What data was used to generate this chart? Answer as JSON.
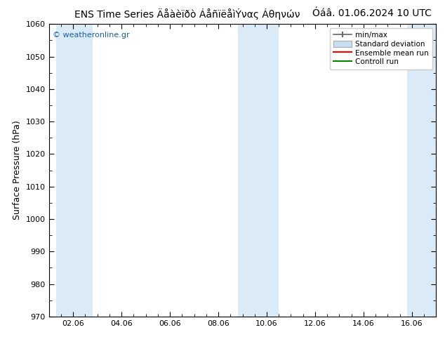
{
  "title_left": "ENS Time Series Äåàèïðò ÁåñïëåìÝνας Áθηνών",
  "title_right": "Óáâ. 01.06.2024 10 UTC",
  "ylabel": "Surface Pressure (hPa)",
  "ymin": 970,
  "ymax": 1060,
  "ytick_step": 10,
  "xlim": [
    0,
    16
  ],
  "xtick_positions": [
    1,
    3,
    5,
    7,
    9,
    11,
    13,
    15
  ],
  "xtick_labels": [
    "02.06",
    "04.06",
    "06.06",
    "08.06",
    "10.06",
    "12.06",
    "14.06",
    "16.06"
  ],
  "shade_bands": [
    {
      "xmin": 0.3,
      "xmax": 1.8
    },
    {
      "xmin": 7.8,
      "xmax": 9.5
    },
    {
      "xmin": 14.8,
      "xmax": 16.0
    }
  ],
  "shade_color": "#daeaf7",
  "watermark": "© weatheronline.gr",
  "watermark_color": "#1a5fa8",
  "legend_minmax_color": "#666666",
  "legend_std_facecolor": "#c8dff0",
  "legend_std_edgecolor": "#aaaaaa",
  "legend_ens_color": "#ff0000",
  "legend_ctrl_color": "#008000",
  "bg_color": "#ffffff",
  "title_fontsize": 10,
  "ylabel_fontsize": 9,
  "tick_fontsize": 8,
  "watermark_fontsize": 8,
  "legend_fontsize": 7.5
}
